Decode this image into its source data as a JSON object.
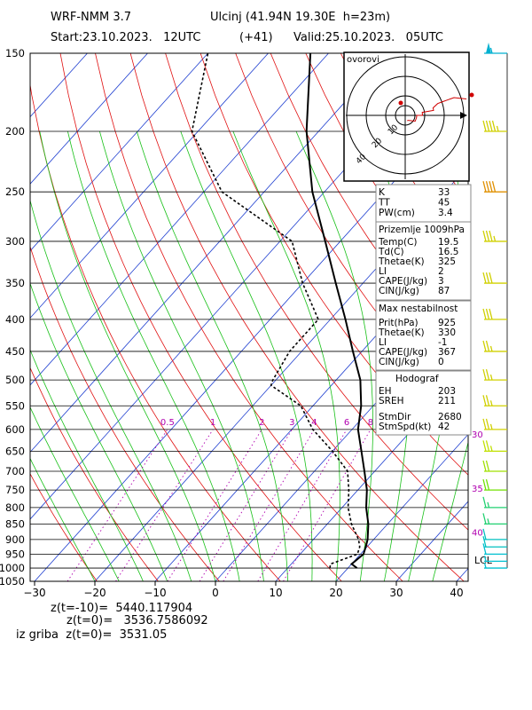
{
  "header": {
    "model": "WRF-NMM 3.7",
    "station": "Ulcinj (41.94N 19.30E  h=23m)",
    "start": "Start:23.10.2023.   12UTC",
    "lead": "(+41)",
    "valid": "Valid:25.10.2023.   05UTC"
  },
  "chart_data": {
    "type": "skew-t log-p",
    "pressure_axis": {
      "ticks": [
        150,
        200,
        250,
        300,
        350,
        400,
        450,
        500,
        550,
        600,
        650,
        700,
        750,
        800,
        850,
        900,
        950,
        1000,
        1050
      ],
      "range": [
        150,
        1050
      ],
      "scale": "log"
    },
    "temperature_axis": {
      "ticks": [
        -30,
        -20,
        -10,
        0,
        10,
        20,
        30,
        40
      ],
      "range": [
        -30,
        42
      ],
      "skewed_isotherms": true
    },
    "mixing_ratio_labels": [
      "0.5",
      "1",
      "2",
      "3",
      "4",
      "6",
      "8"
    ],
    "isotherm_color": "#1f3fd0",
    "dry_adiabat_color": "#e01010",
    "moist_adiabat_color": "#18c018",
    "mixing_ratio_color": "#b000b0",
    "series": [
      {
        "name": "",
        "role": "temperature",
        "style": "solid",
        "points": [
          {
            "p": 1000,
            "t": 21.5
          },
          {
            "p": 985,
            "t": 20.0
          },
          {
            "p": 950,
            "t": 20.5
          },
          {
            "p": 925,
            "t": 19.8
          },
          {
            "p": 900,
            "t": 19.0
          },
          {
            "p": 850,
            "t": 16.8
          },
          {
            "p": 800,
            "t": 14.0
          },
          {
            "p": 750,
            "t": 11.5
          },
          {
            "p": 700,
            "t": 8.3
          },
          {
            "p": 650,
            "t": 4.8
          },
          {
            "p": 600,
            "t": 1.0
          },
          {
            "p": 550,
            "t": -2.0
          },
          {
            "p": 500,
            "t": -6.0
          },
          {
            "p": 450,
            "t": -11.5
          },
          {
            "p": 400,
            "t": -17.5
          },
          {
            "p": 350,
            "t": -24.5
          },
          {
            "p": 300,
            "t": -32.5
          },
          {
            "p": 250,
            "t": -42.0
          },
          {
            "p": 200,
            "t": -52.0
          },
          {
            "p": 150,
            "t": -63.0
          }
        ]
      },
      {
        "name": "",
        "role": "dewpoint",
        "style": "dashed",
        "points": [
          {
            "p": 1000,
            "t": 17.0
          },
          {
            "p": 985,
            "t": 16.5
          },
          {
            "p": 950,
            "t": 19.5
          },
          {
            "p": 925,
            "t": 18.8
          },
          {
            "p": 900,
            "t": 17.5
          },
          {
            "p": 850,
            "t": 14.0
          },
          {
            "p": 800,
            "t": 11.0
          },
          {
            "p": 750,
            "t": 8.5
          },
          {
            "p": 700,
            "t": 5.5
          },
          {
            "p": 650,
            "t": 0.0
          },
          {
            "p": 600,
            "t": -6.5
          },
          {
            "p": 550,
            "t": -12.0
          },
          {
            "p": 510,
            "t": -20.0
          },
          {
            "p": 500,
            "t": -20.5
          },
          {
            "p": 450,
            "t": -22.0
          },
          {
            "p": 400,
            "t": -22.0
          },
          {
            "p": 350,
            "t": -30.0
          },
          {
            "p": 300,
            "t": -38.0
          },
          {
            "p": 250,
            "t": -57.0
          },
          {
            "p": 200,
            "t": -71.0
          },
          {
            "p": 150,
            "t": -80.0
          }
        ]
      }
    ],
    "wind_barbs": [
      {
        "p": 150,
        "dir": 255,
        "speed": 55
      },
      {
        "p": 200,
        "dir": 250,
        "speed": 45
      },
      {
        "p": 250,
        "dir": 250,
        "speed": 40
      },
      {
        "p": 300,
        "dir": 250,
        "speed": 35
      },
      {
        "p": 350,
        "dir": 250,
        "speed": 30
      },
      {
        "p": 400,
        "dir": 250,
        "speed": 30
      },
      {
        "p": 450,
        "dir": 255,
        "speed": 25
      },
      {
        "p": 500,
        "dir": 255,
        "speed": 25
      },
      {
        "p": 550,
        "dir": 255,
        "speed": 25
      },
      {
        "p": 600,
        "dir": 255,
        "speed": 25
      },
      {
        "p": 650,
        "dir": 260,
        "speed": 25
      },
      {
        "p": 700,
        "dir": 260,
        "speed": 20
      },
      {
        "p": 750,
        "dir": 260,
        "speed": 20
      },
      {
        "p": 800,
        "dir": 260,
        "speed": 15
      },
      {
        "p": 850,
        "dir": 270,
        "speed": 15
      },
      {
        "p": 900,
        "dir": 270,
        "speed": 10
      },
      {
        "p": 925,
        "dir": 280,
        "speed": 10
      },
      {
        "p": 950,
        "dir": 300,
        "speed": 10
      },
      {
        "p": 975,
        "dir": 330,
        "speed": 5
      },
      {
        "p": 1000,
        "dir": 340,
        "speed": 5
      }
    ],
    "wind_barb_colors": [
      "#00b0d0",
      "#d0d000",
      "#e09000",
      "#d0d000",
      "#d0d000",
      "#d0d000",
      "#d0d000",
      "#d0d000",
      "#d0d000",
      "#d0d000",
      "#c0e000",
      "#a0e000",
      "#70e000",
      "#20d070",
      "#20d070",
      "#00c0c0",
      "#00c0c0",
      "#00c0d0",
      "#00c0d0",
      "#00c0d0"
    ],
    "right_side_labels": [
      {
        "p": 610,
        "text": "30"
      },
      {
        "p": 745,
        "text": "35"
      },
      {
        "p": 875,
        "text": "40"
      }
    ],
    "lcl": {
      "label": "LCL",
      "p": 970
    }
  },
  "hodograph": {
    "title": "ovorovi",
    "ring_labels": [
      "10",
      "20",
      "40"
    ]
  },
  "indices": {
    "basic": [
      {
        "label": "K",
        "value": "33"
      },
      {
        "label": "TT",
        "value": "45"
      },
      {
        "label": "PW(cm)",
        "value": "3.4"
      }
    ],
    "surface_title": "Prizemlje 1009hPa",
    "surface": [
      {
        "label": "Temp(C)",
        "value": "19.5"
      },
      {
        "label": "Td(C)",
        "value": "16.5"
      },
      {
        "label": "Thetae(K)",
        "value": "325"
      },
      {
        "label": "LI",
        "value": "2"
      },
      {
        "label": "CAPE(J/kg)",
        "value": "3"
      },
      {
        "label": "CIN(J/kg)",
        "value": "87"
      }
    ],
    "unstable_title": "Max nestabilnost",
    "unstable": [
      {
        "label": "Prit(hPa)",
        "value": "925"
      },
      {
        "label": "Thetae(K)",
        "value": "330"
      },
      {
        "label": "LI",
        "value": "-1"
      },
      {
        "label": "CAPE(J/kg)",
        "value": "367"
      },
      {
        "label": "CIN(J/kg)",
        "value": "0"
      }
    ],
    "hodo_title": "Hodograf",
    "hodo": [
      {
        "label": "EH",
        "value": "203"
      },
      {
        "label": "SREH",
        "value": "211"
      },
      {
        "label": "StmDir",
        "value": "2680"
      },
      {
        "label": "StmSpd(kt)",
        "value": "42"
      }
    ]
  },
  "footer": {
    "line1": "z(t=-10)=  5440.117904",
    "line2": "z(t=0)=   3536.7586092",
    "line3": "iz griba  z(t=0)=  3531.05"
  }
}
